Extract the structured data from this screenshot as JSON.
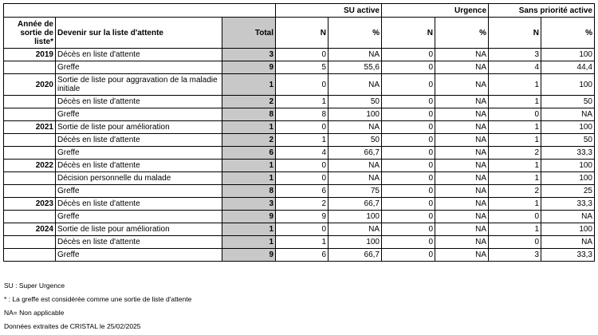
{
  "header": {
    "groups": [
      "SU active",
      "Urgence",
      "Sans priorité active"
    ],
    "year_col": "Année de sortie de liste*",
    "outcome_col": "Devenir sur la liste d'attente",
    "total_col": "Total",
    "n_col": "N",
    "pct_col": "%"
  },
  "rows": [
    {
      "year": "2019",
      "outcome": "Décès en liste d'attente",
      "total": "3",
      "su_n": "0",
      "su_p": "NA",
      "u_n": "0",
      "u_p": "NA",
      "sp_n": "3",
      "sp_p": "100"
    },
    {
      "year": "",
      "outcome": "Greffe",
      "total": "9",
      "su_n": "5",
      "su_p": "55,6",
      "u_n": "0",
      "u_p": "NA",
      "sp_n": "4",
      "sp_p": "44,4"
    },
    {
      "year": "2020",
      "outcome": "Sortie de liste pour aggravation de la maladie initiale",
      "total": "1",
      "su_n": "0",
      "su_p": "NA",
      "u_n": "0",
      "u_p": "NA",
      "sp_n": "1",
      "sp_p": "100"
    },
    {
      "year": "",
      "outcome": "Décès en liste d'attente",
      "total": "2",
      "su_n": "1",
      "su_p": "50",
      "u_n": "0",
      "u_p": "NA",
      "sp_n": "1",
      "sp_p": "50"
    },
    {
      "year": "",
      "outcome": "Greffe",
      "total": "8",
      "su_n": "8",
      "su_p": "100",
      "u_n": "0",
      "u_p": "NA",
      "sp_n": "0",
      "sp_p": "NA"
    },
    {
      "year": "2021",
      "outcome": "Sortie de liste pour amélioration",
      "total": "1",
      "su_n": "0",
      "su_p": "NA",
      "u_n": "0",
      "u_p": "NA",
      "sp_n": "1",
      "sp_p": "100"
    },
    {
      "year": "",
      "outcome": "Décès en liste d'attente",
      "total": "2",
      "su_n": "1",
      "su_p": "50",
      "u_n": "0",
      "u_p": "NA",
      "sp_n": "1",
      "sp_p": "50"
    },
    {
      "year": "",
      "outcome": "Greffe",
      "total": "6",
      "su_n": "4",
      "su_p": "66,7",
      "u_n": "0",
      "u_p": "NA",
      "sp_n": "2",
      "sp_p": "33,3"
    },
    {
      "year": "2022",
      "outcome": "Décès en liste d'attente",
      "total": "1",
      "su_n": "0",
      "su_p": "NA",
      "u_n": "0",
      "u_p": "NA",
      "sp_n": "1",
      "sp_p": "100"
    },
    {
      "year": "",
      "outcome": "Décision personnelle du malade",
      "total": "1",
      "su_n": "0",
      "su_p": "NA",
      "u_n": "0",
      "u_p": "NA",
      "sp_n": "1",
      "sp_p": "100"
    },
    {
      "year": "",
      "outcome": "Greffe",
      "total": "8",
      "su_n": "6",
      "su_p": "75",
      "u_n": "0",
      "u_p": "NA",
      "sp_n": "2",
      "sp_p": "25"
    },
    {
      "year": "2023",
      "outcome": "Décès en liste d'attente",
      "total": "3",
      "su_n": "2",
      "su_p": "66,7",
      "u_n": "0",
      "u_p": "NA",
      "sp_n": "1",
      "sp_p": "33,3"
    },
    {
      "year": "",
      "outcome": "Greffe",
      "total": "9",
      "su_n": "9",
      "su_p": "100",
      "u_n": "0",
      "u_p": "NA",
      "sp_n": "0",
      "sp_p": "NA"
    },
    {
      "year": "2024",
      "outcome": "Sortie de liste pour amélioration",
      "total": "1",
      "su_n": "0",
      "su_p": "NA",
      "u_n": "0",
      "u_p": "NA",
      "sp_n": "1",
      "sp_p": "100"
    },
    {
      "year": "",
      "outcome": "Décès en liste d'attente",
      "total": "1",
      "su_n": "1",
      "su_p": "100",
      "u_n": "0",
      "u_p": "NA",
      "sp_n": "0",
      "sp_p": "NA"
    },
    {
      "year": "",
      "outcome": "Greffe",
      "total": "9",
      "su_n": "6",
      "su_p": "66,7",
      "u_n": "0",
      "u_p": "NA",
      "sp_n": "3",
      "sp_p": "33,3"
    }
  ],
  "notes": [
    "SU : Super Urgence",
    "* : La greffe est considérée comme une sortie de liste d'attente",
    "NA= Non applicable",
    "Données extraites de CRISTAL le 25/02/2025"
  ]
}
